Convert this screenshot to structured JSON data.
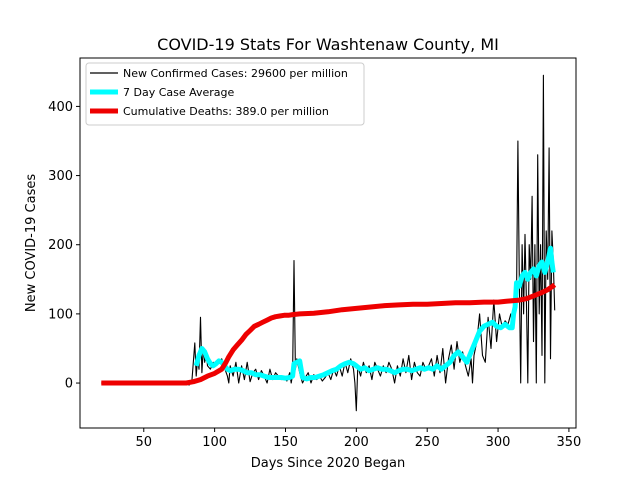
{
  "chart_data": {
    "type": "line",
    "title": "COVID-19 Stats For Washtenaw County, MI",
    "xlabel": "Days Since 2020 Began",
    "ylabel": "New COVID-19 Cases",
    "xlim": [
      5,
      355
    ],
    "ylim": [
      -65,
      470
    ],
    "x_ticks": [
      50,
      100,
      150,
      200,
      250,
      300,
      350
    ],
    "y_ticks": [
      0,
      100,
      200,
      300,
      400
    ],
    "legend_position": "top-left",
    "series": [
      {
        "name": "New Confirmed Cases: 29600 per million",
        "color": "#000000",
        "points": [
          [
            20,
            0
          ],
          [
            75,
            0
          ],
          [
            80,
            2
          ],
          [
            82,
            -3
          ],
          [
            84,
            5
          ],
          [
            86,
            58
          ],
          [
            87,
            10
          ],
          [
            88,
            35
          ],
          [
            89,
            20
          ],
          [
            90,
            95
          ],
          [
            91,
            15
          ],
          [
            92,
            50
          ],
          [
            93,
            30
          ],
          [
            94,
            45
          ],
          [
            95,
            25
          ],
          [
            97,
            20
          ],
          [
            99,
            30
          ],
          [
            101,
            25
          ],
          [
            103,
            30
          ],
          [
            105,
            35
          ],
          [
            107,
            22
          ],
          [
            109,
            10
          ],
          [
            110,
            0
          ],
          [
            111,
            25
          ],
          [
            113,
            10
          ],
          [
            115,
            30
          ],
          [
            117,
            0
          ],
          [
            119,
            25
          ],
          [
            121,
            5
          ],
          [
            123,
            30
          ],
          [
            125,
            2
          ],
          [
            127,
            15
          ],
          [
            129,
            20
          ],
          [
            131,
            5
          ],
          [
            133,
            18
          ],
          [
            135,
            10
          ],
          [
            137,
            0
          ],
          [
            139,
            20
          ],
          [
            141,
            5
          ],
          [
            143,
            15
          ],
          [
            145,
            10
          ],
          [
            147,
            5
          ],
          [
            149,
            10
          ],
          [
            151,
            3
          ],
          [
            153,
            15
          ],
          [
            154,
            0
          ],
          [
            155,
            12
          ],
          [
            156,
            177
          ],
          [
            157,
            20
          ],
          [
            158,
            35
          ],
          [
            160,
            15
          ],
          [
            162,
            0
          ],
          [
            164,
            8
          ],
          [
            166,
            15
          ],
          [
            168,
            0
          ],
          [
            170,
            12
          ],
          [
            172,
            5
          ],
          [
            174,
            10
          ],
          [
            176,
            3
          ],
          [
            178,
            8
          ],
          [
            180,
            15
          ],
          [
            182,
            5
          ],
          [
            184,
            20
          ],
          [
            186,
            10
          ],
          [
            188,
            25
          ],
          [
            190,
            10
          ],
          [
            192,
            30
          ],
          [
            194,
            15
          ],
          [
            196,
            35
          ],
          [
            198,
            20
          ],
          [
            199,
            0
          ],
          [
            200,
            -40
          ],
          [
            201,
            25
          ],
          [
            203,
            10
          ],
          [
            205,
            30
          ],
          [
            207,
            15
          ],
          [
            209,
            25
          ],
          [
            211,
            5
          ],
          [
            213,
            30
          ],
          [
            215,
            20
          ],
          [
            217,
            10
          ],
          [
            219,
            25
          ],
          [
            221,
            15
          ],
          [
            223,
            30
          ],
          [
            225,
            20
          ],
          [
            227,
            0
          ],
          [
            229,
            25
          ],
          [
            231,
            10
          ],
          [
            233,
            35
          ],
          [
            235,
            15
          ],
          [
            237,
            40
          ],
          [
            239,
            5
          ],
          [
            241,
            30
          ],
          [
            243,
            15
          ],
          [
            245,
            10
          ],
          [
            247,
            30
          ],
          [
            249,
            20
          ],
          [
            251,
            25
          ],
          [
            253,
            35
          ],
          [
            255,
            10
          ],
          [
            257,
            40
          ],
          [
            259,
            15
          ],
          [
            261,
            50
          ],
          [
            263,
            0
          ],
          [
            265,
            35
          ],
          [
            267,
            55
          ],
          [
            269,
            20
          ],
          [
            271,
            60
          ],
          [
            273,
            30
          ],
          [
            275,
            45
          ],
          [
            277,
            25
          ],
          [
            279,
            10
          ],
          [
            281,
            35
          ],
          [
            282,
            0
          ],
          [
            283,
            40
          ],
          [
            285,
            60
          ],
          [
            287,
            100
          ],
          [
            289,
            40
          ],
          [
            291,
            30
          ],
          [
            293,
            95
          ],
          [
            295,
            50
          ],
          [
            297,
            120
          ],
          [
            299,
            60
          ],
          [
            301,
            100
          ],
          [
            303,
            80
          ],
          [
            305,
            90
          ],
          [
            307,
            85
          ],
          [
            309,
            100
          ],
          [
            311,
            80
          ],
          [
            313,
            120
          ],
          [
            314,
            350
          ],
          [
            315,
            150
          ],
          [
            316,
            0
          ],
          [
            317,
            200
          ],
          [
            318,
            100
          ],
          [
            319,
            215
          ],
          [
            320,
            120
          ],
          [
            321,
            0
          ],
          [
            322,
            200
          ],
          [
            323,
            150
          ],
          [
            324,
            270
          ],
          [
            325,
            60
          ],
          [
            326,
            200
          ],
          [
            327,
            0
          ],
          [
            328,
            330
          ],
          [
            329,
            100
          ],
          [
            330,
            200
          ],
          [
            331,
            40
          ],
          [
            332,
            445
          ],
          [
            333,
            0
          ],
          [
            334,
            220
          ],
          [
            335,
            150
          ],
          [
            336,
            340
          ],
          [
            337,
            35
          ],
          [
            338,
            220
          ],
          [
            339,
            175
          ],
          [
            340,
            105
          ]
        ]
      },
      {
        "name": "7 Day Case Average",
        "color": "#00ffff",
        "points": [
          [
            87,
            25
          ],
          [
            89,
            40
          ],
          [
            91,
            50
          ],
          [
            93,
            45
          ],
          [
            95,
            35
          ],
          [
            97,
            28
          ],
          [
            99,
            25
          ],
          [
            101,
            28
          ],
          [
            103,
            32
          ],
          [
            105,
            30
          ],
          [
            107,
            25
          ],
          [
            109,
            20
          ],
          [
            111,
            18
          ],
          [
            114,
            20
          ],
          [
            117,
            20
          ],
          [
            120,
            18
          ],
          [
            123,
            15
          ],
          [
            126,
            15
          ],
          [
            129,
            12
          ],
          [
            132,
            12
          ],
          [
            135,
            10
          ],
          [
            138,
            8
          ],
          [
            141,
            8
          ],
          [
            144,
            8
          ],
          [
            147,
            8
          ],
          [
            150,
            7
          ],
          [
            153,
            8
          ],
          [
            155,
            10
          ],
          [
            156,
            28
          ],
          [
            158,
            30
          ],
          [
            160,
            32
          ],
          [
            162,
            8
          ],
          [
            165,
            6
          ],
          [
            168,
            8
          ],
          [
            171,
            8
          ],
          [
            174,
            10
          ],
          [
            177,
            12
          ],
          [
            180,
            15
          ],
          [
            183,
            18
          ],
          [
            186,
            20
          ],
          [
            189,
            25
          ],
          [
            192,
            28
          ],
          [
            195,
            30
          ],
          [
            198,
            28
          ],
          [
            200,
            25
          ],
          [
            203,
            20
          ],
          [
            206,
            22
          ],
          [
            209,
            18
          ],
          [
            212,
            20
          ],
          [
            215,
            22
          ],
          [
            218,
            20
          ],
          [
            221,
            20
          ],
          [
            224,
            18
          ],
          [
            227,
            15
          ],
          [
            230,
            18
          ],
          [
            233,
            20
          ],
          [
            236,
            20
          ],
          [
            239,
            18
          ],
          [
            242,
            20
          ],
          [
            245,
            22
          ],
          [
            248,
            20
          ],
          [
            251,
            22
          ],
          [
            254,
            20
          ],
          [
            257,
            25
          ],
          [
            260,
            20
          ],
          [
            263,
            25
          ],
          [
            266,
            30
          ],
          [
            269,
            40
          ],
          [
            272,
            45
          ],
          [
            275,
            38
          ],
          [
            278,
            30
          ],
          [
            281,
            45
          ],
          [
            284,
            60
          ],
          [
            287,
            75
          ],
          [
            290,
            82
          ],
          [
            293,
            85
          ],
          [
            296,
            88
          ],
          [
            299,
            82
          ],
          [
            302,
            80
          ],
          [
            305,
            85
          ],
          [
            308,
            80
          ],
          [
            310,
            80
          ],
          [
            311,
            100
          ],
          [
            312,
            110
          ],
          [
            313,
            145
          ],
          [
            315,
            140
          ],
          [
            317,
            155
          ],
          [
            319,
            160
          ],
          [
            321,
            150
          ],
          [
            323,
            160
          ],
          [
            325,
            165
          ],
          [
            327,
            155
          ],
          [
            329,
            170
          ],
          [
            331,
            175
          ],
          [
            333,
            160
          ],
          [
            335,
            175
          ],
          [
            337,
            195
          ],
          [
            338,
            175
          ],
          [
            339,
            160
          ]
        ]
      },
      {
        "name": "Cumulative Deaths: 389.0 per million",
        "color": "#ee0000",
        "points": [
          [
            20,
            0
          ],
          [
            30,
            0
          ],
          [
            40,
            0
          ],
          [
            50,
            0
          ],
          [
            60,
            0
          ],
          [
            70,
            0
          ],
          [
            80,
            0
          ],
          [
            85,
            2
          ],
          [
            90,
            5
          ],
          [
            95,
            10
          ],
          [
            100,
            14
          ],
          [
            105,
            20
          ],
          [
            108,
            30
          ],
          [
            110,
            38
          ],
          [
            113,
            48
          ],
          [
            116,
            55
          ],
          [
            119,
            62
          ],
          [
            122,
            70
          ],
          [
            125,
            76
          ],
          [
            128,
            82
          ],
          [
            131,
            85
          ],
          [
            134,
            88
          ],
          [
            137,
            91
          ],
          [
            140,
            94
          ],
          [
            143,
            96
          ],
          [
            146,
            97
          ],
          [
            149,
            98
          ],
          [
            152,
            98
          ],
          [
            155,
            99
          ],
          [
            160,
            100
          ],
          [
            170,
            101
          ],
          [
            180,
            103
          ],
          [
            190,
            106
          ],
          [
            200,
            108
          ],
          [
            210,
            110
          ],
          [
            220,
            112
          ],
          [
            230,
            113
          ],
          [
            240,
            114
          ],
          [
            250,
            114
          ],
          [
            260,
            115
          ],
          [
            270,
            116
          ],
          [
            280,
            116
          ],
          [
            290,
            117
          ],
          [
            300,
            117
          ],
          [
            305,
            118
          ],
          [
            310,
            119
          ],
          [
            315,
            120
          ],
          [
            320,
            122
          ],
          [
            325,
            126
          ],
          [
            330,
            130
          ],
          [
            335,
            135
          ],
          [
            340,
            142
          ]
        ]
      }
    ]
  }
}
